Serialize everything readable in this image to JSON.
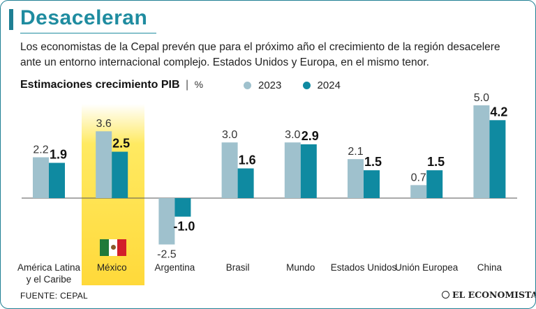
{
  "header": {
    "title": "Desaceleran",
    "intro": "Los economistas de la Cepal prevén que para el próximo año el crecimiento de la región desacelere ante un entorno internacional complejo. Estados Unidos y Europa, en el mismo tenor."
  },
  "chart_head": {
    "title": "Estimaciones crecimiento PIB",
    "separator": "|",
    "unit": "%"
  },
  "colors": {
    "y2023": "#9fc1cd",
    "y2024": "#0f8aa1",
    "brand": "#1f8ca0",
    "highlight": "#ffd93a"
  },
  "chart_data": {
    "type": "bar",
    "title": "Estimaciones crecimiento PIB",
    "ylabel": "%",
    "categories": [
      "América Latina y el Caribe",
      "México",
      "Argentina",
      "Brasil",
      "Mundo",
      "Estados Unidos",
      "Unión Europea",
      "China"
    ],
    "category_lines": [
      [
        "América Latina",
        "y el Caribe"
      ],
      [
        "México"
      ],
      [
        "Argentina"
      ],
      [
        "Brasil"
      ],
      [
        "Mundo"
      ],
      [
        "Estados Unidos"
      ],
      [
        "Unión Europea"
      ],
      [
        "China"
      ]
    ],
    "series": [
      {
        "name": "2023",
        "values": [
          2.2,
          3.6,
          -2.5,
          3.0,
          3.0,
          2.1,
          0.7,
          5.0
        ]
      },
      {
        "name": "2024",
        "values": [
          1.9,
          2.5,
          -1.0,
          1.6,
          2.9,
          1.5,
          1.5,
          4.2
        ]
      }
    ],
    "ylim": [
      -2.5,
      5.0
    ],
    "highlighted_category": "México",
    "legend": "top"
  },
  "footer": {
    "source": "FUENTE: CEPAL",
    "brand": "EL ECONOMISTA"
  }
}
